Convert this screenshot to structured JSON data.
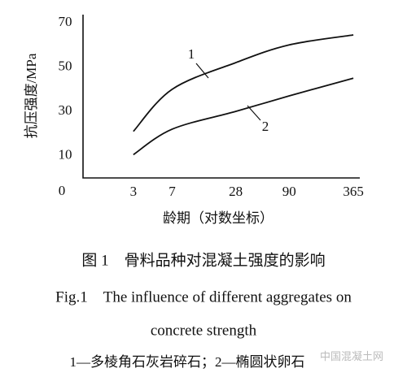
{
  "chart_data": {
    "type": "line",
    "y_label": "抗压强度/MPa",
    "x_label": "龄期（对数坐标）",
    "x_scale": "log",
    "x": [
      3,
      7,
      28,
      90,
      365
    ],
    "xlim": [
      1,
      420
    ],
    "xticks": [
      3,
      7,
      28,
      90,
      365
    ],
    "ylim": [
      0,
      70
    ],
    "yticks": [
      0,
      10,
      30,
      50,
      70
    ],
    "grid": false,
    "series": [
      {
        "name": "1",
        "color": "#111111",
        "values": [
          21,
          40,
          52,
          60,
          64.5
        ]
      },
      {
        "name": "2",
        "color": "#111111",
        "values": [
          10.5,
          22,
          30,
          37,
          45
        ]
      }
    ],
    "caption_cn": "图 1　骨料品种对混凝土强度的影响",
    "caption_en_1": "Fig.1　The influence of different aggregates on",
    "caption_en_2": "concrete strength",
    "legend_note": "1—多棱角石灰岩碎石；2—椭圆状卵石",
    "watermark": "中国混凝土网"
  }
}
